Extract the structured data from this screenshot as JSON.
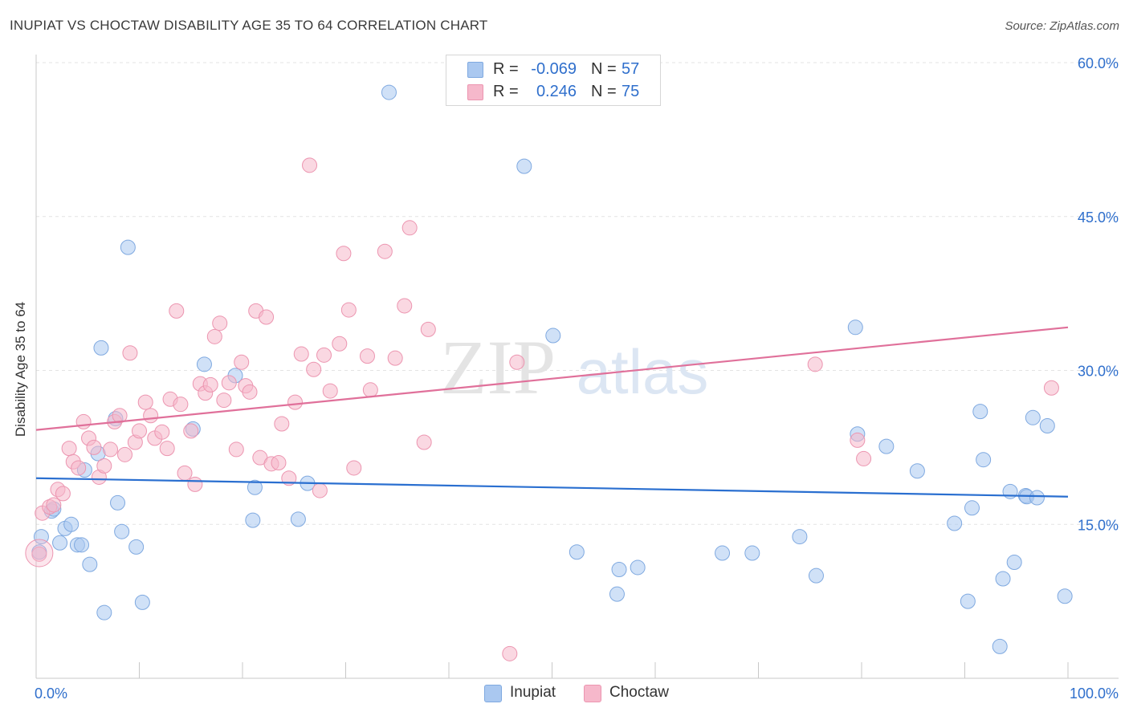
{
  "title": "INUPIAT VS CHOCTAW DISABILITY AGE 35 TO 64 CORRELATION CHART",
  "source": "Source: ZipAtlas.com",
  "watermark": {
    "zip": "ZIP",
    "atlas": "atlas"
  },
  "legend": {
    "rows": [
      {
        "r_label": "R =",
        "r_value": "-0.069",
        "n_label": "N =",
        "n_value": "57",
        "color": "#aac8f0"
      },
      {
        "r_label": "R =",
        "r_value": "0.246",
        "n_label": "N =",
        "n_value": "75",
        "color": "#f6b8cb"
      }
    ]
  },
  "bottom_legend": [
    {
      "label": "Inupiat",
      "color": "#aac8f0"
    },
    {
      "label": "Choctaw",
      "color": "#f6b8cb"
    }
  ],
  "chart_data": {
    "type": "scatter",
    "title": "INUPIAT VS CHOCTAW DISABILITY AGE 35 TO 64 CORRELATION CHART",
    "xlabel": "",
    "ylabel": "Disability Age 35 to 64",
    "xlim": [
      0,
      100
    ],
    "ylim": [
      0,
      60
    ],
    "x_tick_labels": [
      {
        "value": 0,
        "label": "0.0%"
      },
      {
        "value": 100,
        "label": "100.0%"
      }
    ],
    "y_tick_labels": [
      {
        "value": 15,
        "label": "15.0%"
      },
      {
        "value": 30,
        "label": "30.0%"
      },
      {
        "value": 45,
        "label": "45.0%"
      },
      {
        "value": 60,
        "label": "60.0%"
      }
    ],
    "grid": true,
    "legend_position": "top-center",
    "series": [
      {
        "name": "Inupiat",
        "color": "#aac8f0",
        "stroke": "#7fa9e0",
        "trend_color": "#2a6fd0",
        "trend": [
          [
            0,
            19.5
          ],
          [
            100,
            17.7
          ]
        ],
        "points": [
          [
            0.5,
            13.8
          ],
          [
            1.5,
            16.3
          ],
          [
            1.7,
            16.5
          ],
          [
            2.3,
            13.2
          ],
          [
            2.8,
            14.6
          ],
          [
            3.4,
            15.0
          ],
          [
            4.0,
            13.0
          ],
          [
            4.4,
            13.0
          ],
          [
            4.7,
            20.3
          ],
          [
            5.2,
            11.1
          ],
          [
            6.0,
            21.9
          ],
          [
            6.3,
            32.2
          ],
          [
            6.6,
            6.4
          ],
          [
            7.7,
            25.3
          ],
          [
            7.9,
            17.1
          ],
          [
            8.3,
            14.3
          ],
          [
            8.9,
            42.0
          ],
          [
            9.7,
            12.8
          ],
          [
            10.3,
            7.4
          ],
          [
            15.2,
            24.3
          ],
          [
            16.3,
            30.6
          ],
          [
            19.3,
            29.5
          ],
          [
            21.0,
            15.4
          ],
          [
            21.2,
            18.6
          ],
          [
            25.4,
            15.5
          ],
          [
            26.3,
            19.0
          ],
          [
            34.2,
            57.1
          ],
          [
            47.3,
            49.9
          ],
          [
            50.1,
            33.4
          ],
          [
            52.4,
            12.3
          ],
          [
            56.3,
            8.2
          ],
          [
            56.5,
            10.6
          ],
          [
            58.3,
            10.8
          ],
          [
            66.5,
            12.2
          ],
          [
            69.4,
            12.2
          ],
          [
            74.0,
            13.8
          ],
          [
            75.6,
            10.0
          ],
          [
            79.4,
            34.2
          ],
          [
            79.6,
            23.8
          ],
          [
            82.4,
            22.6
          ],
          [
            85.4,
            20.2
          ],
          [
            89.0,
            15.1
          ],
          [
            90.3,
            7.5
          ],
          [
            90.7,
            16.6
          ],
          [
            91.5,
            26.0
          ],
          [
            91.8,
            21.3
          ],
          [
            93.4,
            3.1
          ],
          [
            93.7,
            9.7
          ],
          [
            94.4,
            18.2
          ],
          [
            94.8,
            11.3
          ],
          [
            95.9,
            17.8
          ],
          [
            96.0,
            17.7
          ],
          [
            96.6,
            25.4
          ],
          [
            97.0,
            17.6
          ],
          [
            98.0,
            24.6
          ],
          [
            99.7,
            8.0
          ],
          [
            0.3,
            12.3
          ]
        ]
      },
      {
        "name": "Choctaw",
        "color": "#f6b8cb",
        "stroke": "#ec95b0",
        "trend_color": "#e0709a",
        "trend": [
          [
            0,
            24.2
          ],
          [
            100,
            34.2
          ]
        ],
        "points": [
          [
            0.3,
            12.1
          ],
          [
            0.6,
            16.1
          ],
          [
            1.3,
            16.7
          ],
          [
            1.7,
            16.9
          ],
          [
            2.1,
            18.4
          ],
          [
            2.6,
            18.0
          ],
          [
            3.2,
            22.4
          ],
          [
            3.6,
            21.1
          ],
          [
            4.1,
            20.5
          ],
          [
            4.6,
            25.0
          ],
          [
            5.1,
            23.4
          ],
          [
            5.6,
            22.5
          ],
          [
            6.1,
            19.6
          ],
          [
            6.6,
            20.7
          ],
          [
            7.2,
            22.3
          ],
          [
            7.6,
            25.0
          ],
          [
            8.1,
            25.6
          ],
          [
            8.6,
            21.8
          ],
          [
            9.1,
            31.7
          ],
          [
            9.6,
            23.0
          ],
          [
            10.0,
            24.1
          ],
          [
            10.6,
            26.9
          ],
          [
            11.1,
            25.6
          ],
          [
            11.5,
            23.4
          ],
          [
            12.2,
            24.0
          ],
          [
            12.7,
            22.4
          ],
          [
            13.0,
            27.2
          ],
          [
            13.6,
            35.8
          ],
          [
            14.0,
            26.7
          ],
          [
            14.4,
            20.0
          ],
          [
            15.0,
            24.1
          ],
          [
            15.4,
            18.9
          ],
          [
            15.9,
            28.7
          ],
          [
            16.4,
            27.8
          ],
          [
            16.9,
            28.6
          ],
          [
            17.3,
            33.3
          ],
          [
            17.8,
            34.6
          ],
          [
            18.2,
            27.1
          ],
          [
            18.7,
            28.8
          ],
          [
            19.4,
            22.3
          ],
          [
            19.9,
            30.8
          ],
          [
            20.3,
            28.5
          ],
          [
            20.7,
            27.9
          ],
          [
            21.3,
            35.8
          ],
          [
            21.7,
            21.5
          ],
          [
            22.3,
            35.2
          ],
          [
            22.8,
            20.9
          ],
          [
            23.5,
            21.0
          ],
          [
            23.8,
            24.8
          ],
          [
            24.5,
            19.5
          ],
          [
            25.1,
            26.9
          ],
          [
            25.7,
            31.6
          ],
          [
            26.5,
            50.0
          ],
          [
            26.9,
            30.1
          ],
          [
            27.5,
            18.3
          ],
          [
            27.9,
            31.5
          ],
          [
            28.5,
            28.0
          ],
          [
            29.4,
            32.6
          ],
          [
            29.8,
            41.4
          ],
          [
            30.3,
            35.9
          ],
          [
            30.8,
            20.5
          ],
          [
            32.1,
            31.4
          ],
          [
            32.4,
            28.1
          ],
          [
            33.8,
            41.6
          ],
          [
            34.8,
            31.2
          ],
          [
            35.7,
            36.3
          ],
          [
            36.2,
            43.9
          ],
          [
            37.6,
            23.0
          ],
          [
            38.0,
            34.0
          ],
          [
            45.9,
            2.4
          ],
          [
            46.6,
            30.8
          ],
          [
            75.5,
            30.6
          ],
          [
            79.6,
            23.2
          ],
          [
            80.2,
            21.4
          ],
          [
            98.4,
            28.3
          ]
        ]
      }
    ]
  }
}
